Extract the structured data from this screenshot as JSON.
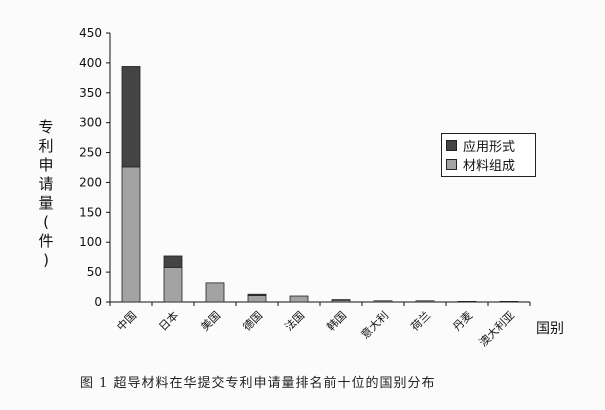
{
  "caption": "图 1  超导材料在华提交专利申请量排名前十位的国别分布",
  "chart_data": {
    "type": "bar",
    "stacked": true,
    "categories": [
      "中国",
      "日本",
      "美国",
      "德国",
      "法国",
      "韩国",
      "意大利",
      "荷兰",
      "丹麦",
      "澳大利亚"
    ],
    "series": [
      {
        "name": "材料组成",
        "color": "#a3a3a3",
        "values": [
          226,
          58,
          32,
          11,
          10,
          3,
          2,
          2,
          1,
          1
        ]
      },
      {
        "name": "应用形式",
        "color": "#444444",
        "values": [
          168,
          19,
          0,
          2,
          0,
          1,
          0,
          0,
          0,
          0
        ]
      }
    ],
    "ylabel": "专利申请量(件)",
    "xlabel": "国别",
    "ylim": [
      0,
      450
    ],
    "yticks": [
      0,
      50,
      100,
      150,
      200,
      250,
      300,
      350,
      400,
      450
    ],
    "legend": [
      "应用形式",
      "材料组成"
    ],
    "legend_position": "right",
    "grid": false
  }
}
